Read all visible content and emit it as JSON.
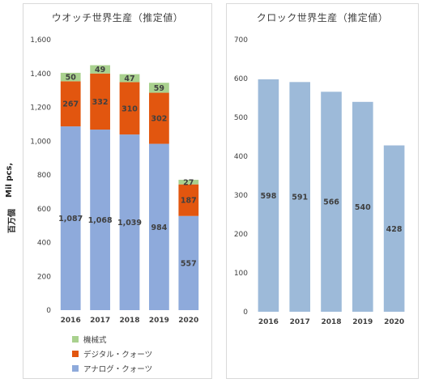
{
  "y_axis_title": {
    "primary": "百万個",
    "secondary": "Mil pcs,"
  },
  "chart_data": [
    {
      "type": "bar",
      "stacked": true,
      "title": "ウオッチ世界生産（推定値）",
      "categories": [
        "2016",
        "2017",
        "2018",
        "2019",
        "2020"
      ],
      "series": [
        {
          "name": "アナログ・クォーツ",
          "color": "#8eaadb",
          "values": [
            1087,
            1068,
            1039,
            984,
            557
          ],
          "labels": [
            "1,087",
            "1,068",
            "1,039",
            "984",
            "557"
          ]
        },
        {
          "name": "デジタル・クォーツ",
          "color": "#e2560f",
          "values": [
            267,
            332,
            310,
            302,
            187
          ],
          "labels": [
            "267",
            "332",
            "310",
            "302",
            "187"
          ]
        },
        {
          "name": "機械式",
          "color": "#a9d18e",
          "values": [
            50,
            49,
            47,
            59,
            27
          ],
          "labels": [
            "50",
            "49",
            "47",
            "59",
            "27"
          ]
        }
      ],
      "ylim": [
        0,
        1600
      ],
      "yticks": [
        "0",
        "200",
        "400",
        "600",
        "800",
        "1,000",
        "1,200",
        "1,400",
        "1,600"
      ],
      "legend": "bottom",
      "grid": false
    },
    {
      "type": "bar",
      "title": "クロック世界生産（推定値）",
      "categories": [
        "2016",
        "2017",
        "2018",
        "2019",
        "2020"
      ],
      "series": [
        {
          "color": "#9dbad9",
          "values": [
            598,
            591,
            566,
            540,
            428
          ],
          "labels": [
            "598",
            "591",
            "566",
            "540",
            "428"
          ]
        }
      ],
      "ylim": [
        0,
        700
      ],
      "yticks": [
        "0",
        "100",
        "200",
        "300",
        "400",
        "500",
        "600",
        "700"
      ],
      "grid": false
    }
  ]
}
